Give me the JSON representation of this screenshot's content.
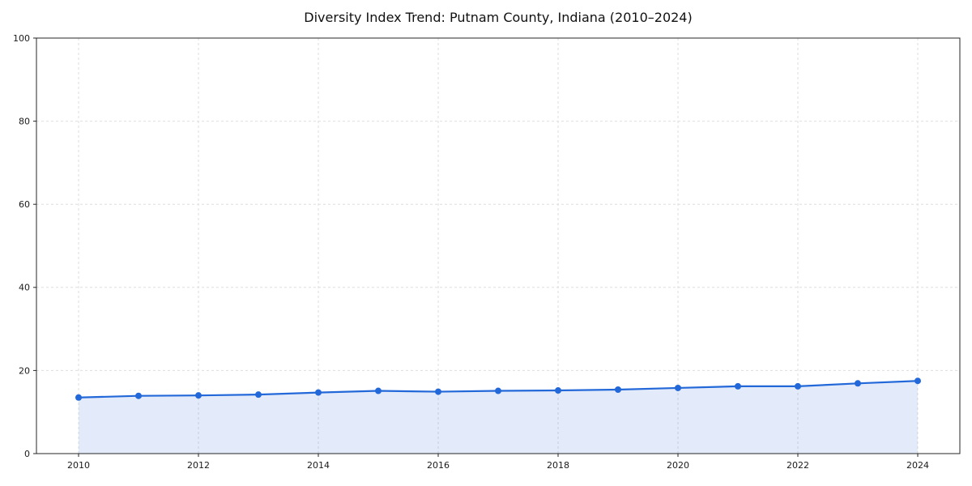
{
  "chart_data": {
    "type": "line",
    "title": "Diversity Index Trend: Putnam County, Indiana (2010–2024)",
    "x": [
      2010,
      2011,
      2012,
      2013,
      2014,
      2015,
      2016,
      2017,
      2018,
      2019,
      2020,
      2021,
      2022,
      2023,
      2024
    ],
    "values": [
      13.5,
      13.9,
      14.0,
      14.2,
      14.7,
      15.1,
      14.9,
      15.1,
      15.2,
      15.4,
      15.8,
      16.2,
      16.2,
      16.9,
      17.5
    ],
    "xticks": [
      2010,
      2012,
      2014,
      2016,
      2018,
      2020,
      2022,
      2024
    ],
    "yticks": [
      0,
      20,
      40,
      60,
      80,
      100
    ],
    "ylim": [
      0,
      100
    ],
    "xlabel": "",
    "ylabel": "",
    "legend": "none",
    "grid": "dashed",
    "colors": {
      "line": "#2368d9",
      "marker": "#2368d9",
      "fill": "rgba(35,104,217,0.13)",
      "grid": "#dedede",
      "spine": "#262626",
      "tick_label": "#1a1a1a"
    }
  }
}
